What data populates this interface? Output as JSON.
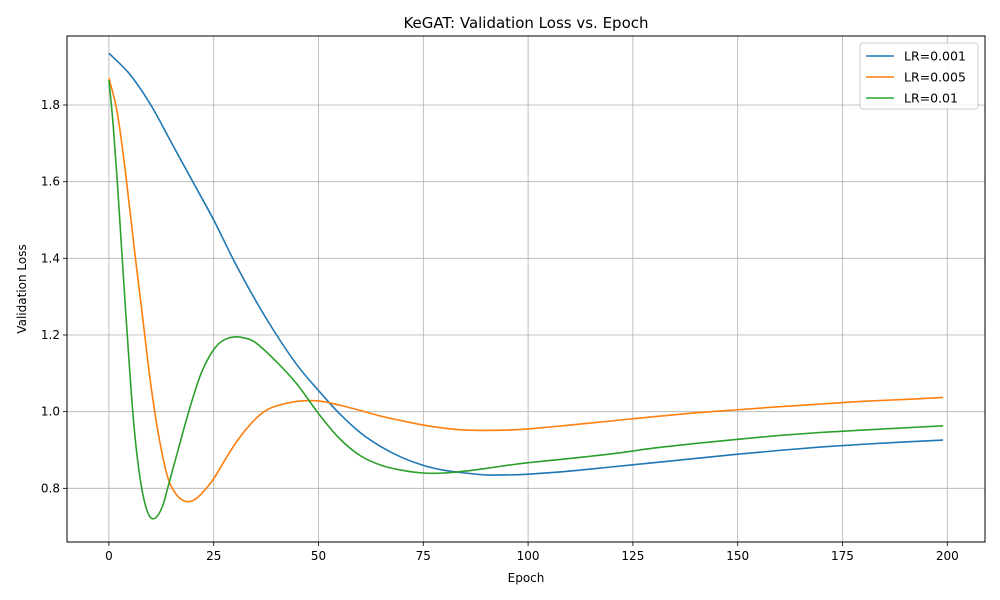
{
  "chart_data": {
    "type": "line",
    "title": "KeGAT: Validation Loss vs. Epoch",
    "xlabel": "Epoch",
    "ylabel": "Validation Loss",
    "xlim": [
      -10,
      209
    ],
    "ylim": [
      0.66,
      1.98
    ],
    "xticks": [
      0,
      25,
      50,
      75,
      100,
      125,
      150,
      175,
      200
    ],
    "yticks": [
      0.8,
      1.0,
      1.2,
      1.4,
      1.6,
      1.8
    ],
    "ytick_labels": [
      "0.8",
      "1.0",
      "1.2",
      "1.4",
      "1.6",
      "1.8"
    ],
    "grid": true,
    "legend_position": "top-right",
    "series": [
      {
        "name": "LR=0.001",
        "color": "#1f77b4",
        "points": [
          [
            0,
            1.935
          ],
          [
            5,
            1.88
          ],
          [
            10,
            1.8
          ],
          [
            15,
            1.7
          ],
          [
            20,
            1.6
          ],
          [
            25,
            1.5
          ],
          [
            30,
            1.39
          ],
          [
            35,
            1.29
          ],
          [
            40,
            1.2
          ],
          [
            45,
            1.12
          ],
          [
            50,
            1.055
          ],
          [
            55,
            0.995
          ],
          [
            60,
            0.945
          ],
          [
            65,
            0.908
          ],
          [
            70,
            0.88
          ],
          [
            75,
            0.86
          ],
          [
            80,
            0.847
          ],
          [
            85,
            0.84
          ],
          [
            90,
            0.835
          ],
          [
            95,
            0.835
          ],
          [
            100,
            0.837
          ],
          [
            110,
            0.845
          ],
          [
            120,
            0.856
          ],
          [
            130,
            0.867
          ],
          [
            140,
            0.878
          ],
          [
            150,
            0.889
          ],
          [
            160,
            0.899
          ],
          [
            170,
            0.908
          ],
          [
            180,
            0.915
          ],
          [
            190,
            0.921
          ],
          [
            199,
            0.926
          ]
        ]
      },
      {
        "name": "LR=0.005",
        "color": "#ff7f0e",
        "points": [
          [
            0,
            1.87
          ],
          [
            2,
            1.78
          ],
          [
            4,
            1.62
          ],
          [
            6,
            1.43
          ],
          [
            8,
            1.25
          ],
          [
            10,
            1.07
          ],
          [
            12,
            0.93
          ],
          [
            14,
            0.83
          ],
          [
            16,
            0.785
          ],
          [
            18,
            0.767
          ],
          [
            20,
            0.768
          ],
          [
            22,
            0.785
          ],
          [
            25,
            0.825
          ],
          [
            28,
            0.88
          ],
          [
            31,
            0.93
          ],
          [
            34,
            0.97
          ],
          [
            37,
            1.0
          ],
          [
            40,
            1.015
          ],
          [
            45,
            1.027
          ],
          [
            50,
            1.028
          ],
          [
            55,
            1.017
          ],
          [
            60,
            1.003
          ],
          [
            65,
            0.988
          ],
          [
            70,
            0.976
          ],
          [
            75,
            0.965
          ],
          [
            80,
            0.957
          ],
          [
            85,
            0.952
          ],
          [
            90,
            0.951
          ],
          [
            95,
            0.952
          ],
          [
            100,
            0.955
          ],
          [
            110,
            0.965
          ],
          [
            120,
            0.976
          ],
          [
            130,
            0.987
          ],
          [
            140,
            0.997
          ],
          [
            150,
            1.005
          ],
          [
            160,
            1.013
          ],
          [
            170,
            1.02
          ],
          [
            180,
            1.027
          ],
          [
            190,
            1.032
          ],
          [
            199,
            1.037
          ]
        ]
      },
      {
        "name": "LR=0.01",
        "color": "#2ca02c",
        "points": [
          [
            0,
            1.865
          ],
          [
            1,
            1.75
          ],
          [
            2,
            1.6
          ],
          [
            3,
            1.43
          ],
          [
            4,
            1.26
          ],
          [
            5,
            1.1
          ],
          [
            6,
            0.96
          ],
          [
            7,
            0.86
          ],
          [
            8,
            0.79
          ],
          [
            9,
            0.745
          ],
          [
            10,
            0.723
          ],
          [
            11,
            0.722
          ],
          [
            12,
            0.735
          ],
          [
            13,
            0.76
          ],
          [
            14,
            0.8
          ],
          [
            16,
            0.88
          ],
          [
            18,
            0.96
          ],
          [
            20,
            1.035
          ],
          [
            22,
            1.1
          ],
          [
            24,
            1.145
          ],
          [
            26,
            1.175
          ],
          [
            28,
            1.19
          ],
          [
            30,
            1.195
          ],
          [
            32,
            1.193
          ],
          [
            35,
            1.18
          ],
          [
            40,
            1.13
          ],
          [
            45,
            1.07
          ],
          [
            50,
            0.995
          ],
          [
            55,
            0.93
          ],
          [
            60,
            0.885
          ],
          [
            65,
            0.86
          ],
          [
            70,
            0.847
          ],
          [
            75,
            0.84
          ],
          [
            80,
            0.84
          ],
          [
            85,
            0.845
          ],
          [
            90,
            0.852
          ],
          [
            95,
            0.86
          ],
          [
            100,
            0.867
          ],
          [
            110,
            0.878
          ],
          [
            120,
            0.89
          ],
          [
            130,
            0.905
          ],
          [
            140,
            0.917
          ],
          [
            150,
            0.928
          ],
          [
            160,
            0.938
          ],
          [
            170,
            0.946
          ],
          [
            180,
            0.952
          ],
          [
            190,
            0.958
          ],
          [
            199,
            0.963
          ]
        ]
      }
    ]
  }
}
